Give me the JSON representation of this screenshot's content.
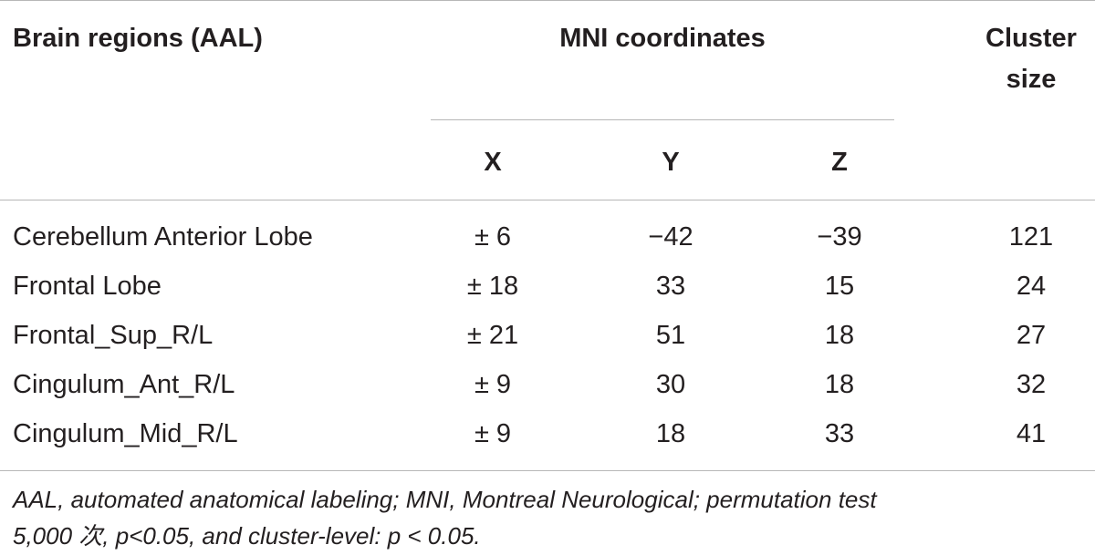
{
  "table": {
    "header": {
      "region": "Brain regions (AAL)",
      "mni": "MNI coordinates",
      "cluster_line1": "Cluster",
      "cluster_line2": "size",
      "x": "X",
      "y": "Y",
      "z": "Z"
    },
    "rows": [
      {
        "region": "Cerebellum Anterior Lobe",
        "x": "± 6",
        "y": "−42",
        "z": "−39",
        "size": "121"
      },
      {
        "region": "Frontal Lobe",
        "x": "± 18",
        "y": "33",
        "z": "15",
        "size": "24"
      },
      {
        "region": "Frontal_Sup_R/L",
        "x": "± 21",
        "y": "51",
        "z": "18",
        "size": "27"
      },
      {
        "region": "Cingulum_Ant_R/L",
        "x": "± 9",
        "y": "30",
        "z": "18",
        "size": "32"
      },
      {
        "region": "Cingulum_Mid_R/L",
        "x": "± 9",
        "y": "18",
        "z": "33",
        "size": "41"
      }
    ]
  },
  "footnote": {
    "line1": "AAL, automated anatomical labeling; MNI, Montreal Neurological; permutation test",
    "line2": "5,000 次, p<0.05, and cluster-level: p < 0.05."
  }
}
